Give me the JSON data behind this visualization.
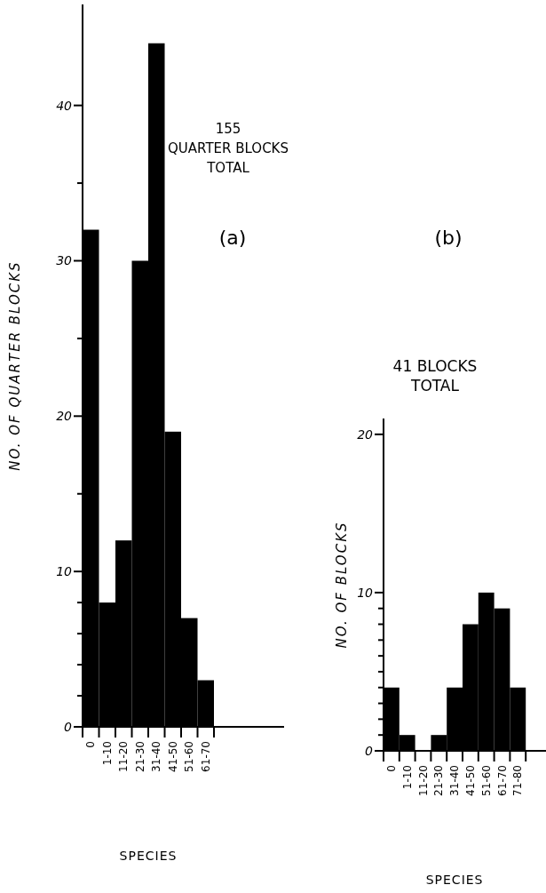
{
  "chart_data": [
    {
      "type": "bar",
      "title": "155\nQUARTER BLOCKS\nTOTAL",
      "xlabel": "SPECIES",
      "ylabel": "NO. OF QUARTER BLOCKS",
      "annotations": [
        "(a)"
      ],
      "categories": [
        "0",
        "1-10",
        "11-20",
        "21-30",
        "31-40",
        "41-50",
        "51-60",
        "61-70"
      ],
      "values": [
        32,
        8,
        12,
        30,
        44,
        19,
        7,
        3
      ],
      "color": "#000000",
      "ylim": [
        0,
        46.5
      ],
      "yticks": [
        0,
        {
          "value": 2,
          "label": null
        },
        {
          "value": 4,
          "label": null
        },
        {
          "value": 6,
          "label": null
        },
        {
          "value": 8,
          "label": null
        },
        10,
        {
          "value": 15,
          "label": null
        },
        20,
        {
          "value": 25,
          "label": null
        },
        30,
        {
          "value": 35,
          "label": null
        },
        40
      ],
      "grid": false
    },
    {
      "type": "bar",
      "title": "41 BLOCKS\nTOTAL",
      "xlabel": "SPECIES",
      "ylabel": "NO. OF BLOCKS",
      "annotations": [
        "(b)"
      ],
      "categories": [
        "0",
        "1-10",
        "11-20",
        "21-30",
        "31-40",
        "41-50",
        "51-60",
        "61-70",
        "71-80"
      ],
      "values": [
        4,
        1,
        0,
        1,
        4,
        8,
        10,
        9,
        4
      ],
      "color": "#000000",
      "ylim": [
        0,
        21
      ],
      "yticks": [
        0,
        {
          "value": 1,
          "label": null
        },
        {
          "value": 2,
          "label": null
        },
        {
          "value": 3,
          "label": null
        },
        {
          "value": 4,
          "label": null
        },
        {
          "value": 5,
          "label": null
        },
        {
          "value": 6,
          "label": null
        },
        {
          "value": 7,
          "label": null
        },
        {
          "value": 8,
          "label": null
        },
        {
          "value": 9,
          "label": null
        },
        10,
        20
      ],
      "grid": false
    }
  ]
}
